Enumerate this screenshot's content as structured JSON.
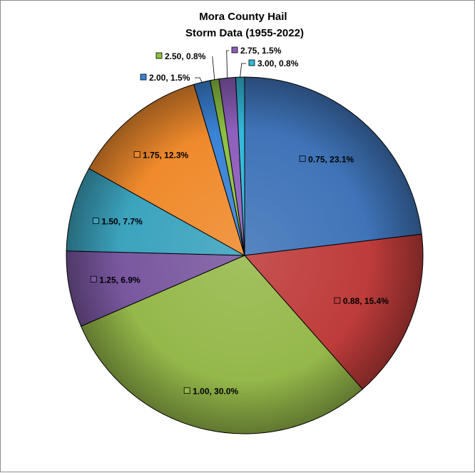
{
  "chart_data": {
    "type": "pie",
    "title": "Mora County Hail\nStorm Data (1955-2022)",
    "title_lines": [
      "Mora County Hail",
      "Storm Data (1955-2022)"
    ],
    "categories": [
      "0.75",
      "0.88",
      "1.00",
      "1.25",
      "1.50",
      "1.75",
      "2.00",
      "2.50",
      "2.75",
      "3.00"
    ],
    "values": [
      23.1,
      15.4,
      30.0,
      6.9,
      7.7,
      12.3,
      1.5,
      0.8,
      1.5,
      0.8
    ],
    "labels": [
      "0.75, 23.1%",
      "0.88, 15.4%",
      "1.00, 30.0%",
      "1.25, 6.9%",
      "1.50, 7.7%",
      "1.75, 12.3%",
      "2.00, 1.5%",
      "2.50, 0.8%",
      "2.75, 1.5%",
      "3.00, 0.8%"
    ],
    "colors": [
      "#3f74b8",
      "#be3c3a",
      "#95b84a",
      "#7a58a0",
      "#3ca3be",
      "#ef8a2c",
      "#3a83d6",
      "#8cc043",
      "#8e5fbc",
      "#32b9d9"
    ],
    "legend": "none",
    "label_format": "category, percent"
  }
}
